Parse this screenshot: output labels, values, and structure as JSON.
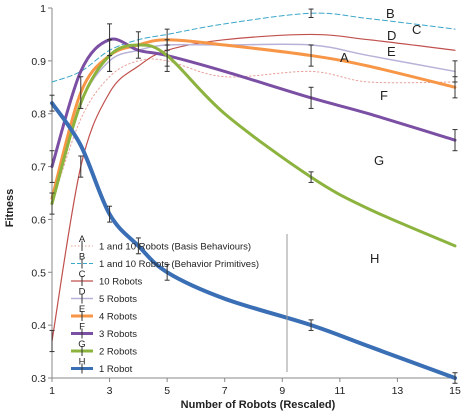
{
  "chart_data": {
    "type": "line",
    "title": "",
    "xlabel": "Number of Robots (Rescaled)",
    "ylabel": "Fitness",
    "xlim": [
      1,
      15
    ],
    "ylim": [
      0.3,
      1.0
    ],
    "x_ticks": [
      1,
      3,
      5,
      7,
      9,
      11,
      13,
      15
    ],
    "y_ticks": [
      0.3,
      0.4,
      0.5,
      0.6,
      0.7,
      0.8,
      0.9,
      1.0
    ],
    "x_tick_labels": [
      "1",
      "3",
      "5",
      "7",
      "9",
      "11",
      "13",
      "15"
    ],
    "y_tick_labels": [
      "0.3",
      "0.4",
      "0.5",
      "0.6",
      "0.7",
      "0.8",
      "0.9",
      "1"
    ],
    "grid": false,
    "legend_position": "bottom-left",
    "series": [
      {
        "key": "A",
        "name": "1 and 10 Robots (Basis Behaviours)",
        "color": "#e8a09a",
        "style": "dotted",
        "width": 1,
        "x": [
          1,
          2,
          3,
          4,
          5,
          7,
          10,
          12,
          15
        ],
        "y": [
          0.63,
          0.79,
          0.87,
          0.9,
          0.9,
          0.87,
          0.88,
          0.86,
          0.86
        ]
      },
      {
        "key": "B",
        "name": "1 and 10 Robots (Behavior Primitives)",
        "color": "#3aa6c9",
        "style": "dashed",
        "width": 1,
        "x": [
          1,
          2,
          3,
          4,
          5,
          7,
          10,
          12,
          15
        ],
        "y": [
          0.86,
          0.88,
          0.92,
          0.94,
          0.95,
          0.97,
          0.99,
          0.98,
          0.96
        ]
      },
      {
        "key": "C",
        "name": "10 Robots",
        "color": "#c0504d",
        "style": "solid",
        "width": 1.2,
        "x": [
          1,
          2,
          3,
          4,
          5,
          7,
          10,
          12,
          15
        ],
        "y": [
          0.37,
          0.7,
          0.84,
          0.89,
          0.92,
          0.94,
          0.95,
          0.94,
          0.92
        ]
      },
      {
        "key": "D",
        "name": "5 Robots",
        "color": "#b8b2d8",
        "style": "solid",
        "width": 1.5,
        "x": [
          1,
          2,
          3,
          4,
          5,
          7,
          10,
          12,
          15
        ],
        "y": [
          0.64,
          0.82,
          0.9,
          0.92,
          0.93,
          0.93,
          0.93,
          0.91,
          0.88
        ]
      },
      {
        "key": "E",
        "name": "4 Robots",
        "color": "#f79646",
        "style": "solid",
        "width": 3,
        "x": [
          1,
          2,
          3,
          4,
          5,
          7,
          10,
          12,
          15
        ],
        "y": [
          0.64,
          0.84,
          0.91,
          0.93,
          0.94,
          0.93,
          0.91,
          0.89,
          0.85
        ]
      },
      {
        "key": "F",
        "name": "3 Robots",
        "color": "#7b4fa3",
        "style": "solid",
        "width": 3,
        "x": [
          1,
          2,
          3,
          4,
          5,
          7,
          10,
          12,
          15
        ],
        "y": [
          0.7,
          0.88,
          0.94,
          0.92,
          0.91,
          0.88,
          0.83,
          0.8,
          0.75
        ]
      },
      {
        "key": "G",
        "name": "2 Robots",
        "color": "#8db33f",
        "style": "solid",
        "width": 3,
        "x": [
          1,
          2,
          3,
          4,
          5,
          7,
          10,
          12,
          15
        ],
        "y": [
          0.63,
          0.82,
          0.91,
          0.93,
          0.91,
          0.8,
          0.68,
          0.62,
          0.55
        ]
      },
      {
        "key": "H",
        "name": "1 Robot",
        "color": "#3a6fb5",
        "style": "solid",
        "width": 4,
        "x": [
          1,
          2,
          3,
          4,
          5,
          7,
          10,
          12,
          15
        ],
        "y": [
          0.82,
          0.74,
          0.61,
          0.55,
          0.5,
          0.45,
          0.4,
          0.36,
          0.3
        ]
      }
    ],
    "error_bars": [
      {
        "series": "C",
        "x": 1,
        "y": 0.37,
        "err": 0.02
      },
      {
        "series": "C",
        "x": 2,
        "y": 0.7,
        "err": 0.02
      },
      {
        "series": "H",
        "x": 1,
        "y": 0.82,
        "err": 0.015
      },
      {
        "series": "H",
        "x": 3,
        "y": 0.61,
        "err": 0.015
      },
      {
        "series": "H",
        "x": 4,
        "y": 0.55,
        "err": 0.015
      },
      {
        "series": "H",
        "x": 5,
        "y": 0.5,
        "err": 0.015
      },
      {
        "series": "H",
        "x": 10,
        "y": 0.4,
        "err": 0.01
      },
      {
        "series": "H",
        "x": 15,
        "y": 0.3,
        "err": 0.01
      },
      {
        "series": "G",
        "x": 1,
        "y": 0.63,
        "err": 0.02
      },
      {
        "series": "G",
        "x": 3,
        "y": 0.91,
        "err": 0.03
      },
      {
        "series": "G",
        "x": 5,
        "y": 0.91,
        "err": 0.03
      },
      {
        "series": "G",
        "x": 10,
        "y": 0.68,
        "err": 0.01
      },
      {
        "series": "F",
        "x": 1,
        "y": 0.7,
        "err": 0.03
      },
      {
        "series": "F",
        "x": 3,
        "y": 0.94,
        "err": 0.03
      },
      {
        "series": "F",
        "x": 5,
        "y": 0.91,
        "err": 0.02
      },
      {
        "series": "F",
        "x": 10,
        "y": 0.83,
        "err": 0.02
      },
      {
        "series": "F",
        "x": 15,
        "y": 0.75,
        "err": 0.02
      },
      {
        "series": "E",
        "x": 2,
        "y": 0.84,
        "err": 0.03
      },
      {
        "series": "E",
        "x": 3,
        "y": 0.91,
        "err": 0.03
      },
      {
        "series": "E",
        "x": 4,
        "y": 0.93,
        "err": 0.025
      },
      {
        "series": "E",
        "x": 5,
        "y": 0.94,
        "err": 0.02
      },
      {
        "series": "E",
        "x": 10,
        "y": 0.91,
        "err": 0.02
      },
      {
        "series": "E",
        "x": 15,
        "y": 0.85,
        "err": 0.02
      },
      {
        "series": "D",
        "x": 15,
        "y": 0.88,
        "err": 0.02
      },
      {
        "series": "B",
        "x": 10,
        "y": 0.99,
        "err": 0.008
      }
    ],
    "curve_letters": [
      "A",
      "B",
      "C",
      "D",
      "E",
      "F",
      "G",
      "H"
    ]
  }
}
